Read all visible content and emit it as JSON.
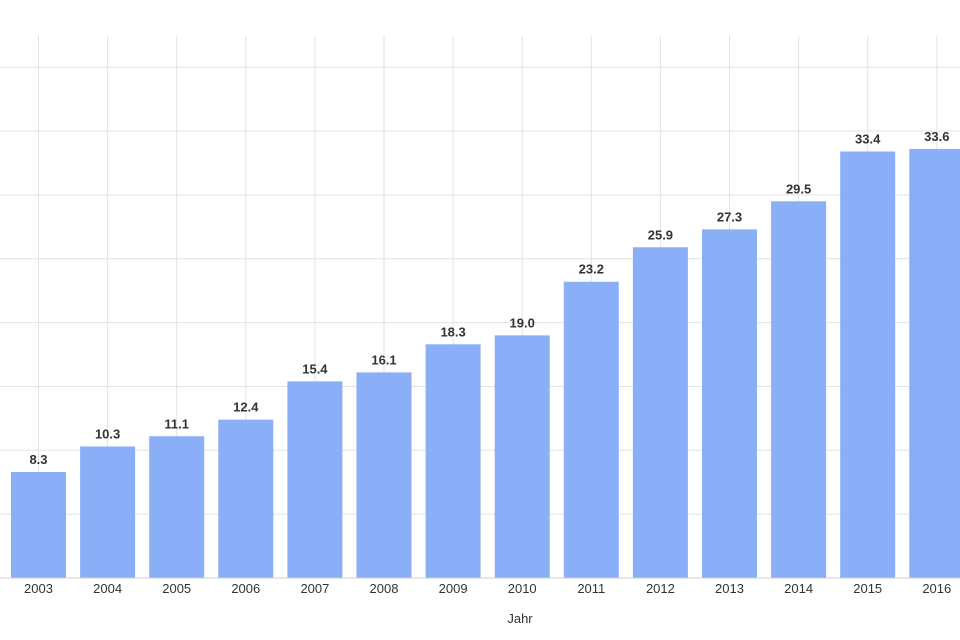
{
  "chart_data": {
    "type": "bar",
    "categories": [
      "2003",
      "2004",
      "2005",
      "2006",
      "2007",
      "2008",
      "2009",
      "2010",
      "2011",
      "2012",
      "2013",
      "2014",
      "2015",
      "2016"
    ],
    "values": [
      8.3,
      10.3,
      11.1,
      12.4,
      15.4,
      16.1,
      18.3,
      19.0,
      23.2,
      25.9,
      27.3,
      29.5,
      33.4,
      33.6
    ],
    "value_labels": [
      "8.3",
      "10.3",
      "11.1",
      "12.4",
      "15.4",
      "16.1",
      "18.3",
      "19.0",
      "23.2",
      "25.9",
      "27.3",
      "29.5",
      "33.4",
      "33.6"
    ],
    "xlabel": "Jahr",
    "ylabel": "",
    "ylim": [
      0,
      42.5
    ],
    "grid": true,
    "bar_color": "#8aaef8"
  }
}
